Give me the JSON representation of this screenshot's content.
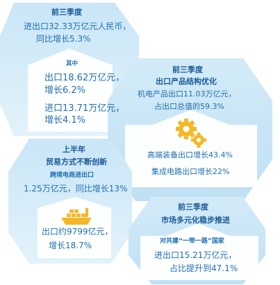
{
  "panel1": {
    "title": "前三季度",
    "line1": "进出口32.33万亿元人民币，",
    "line2": "同比增长5.3%",
    "sub_title": "其中",
    "export_label": "出口18.62万亿元，",
    "export_growth": "增长6.2%",
    "import_label": "进口13.71万亿元，",
    "import_growth": "增长4.1%"
  },
  "panel2": {
    "title": "前三季度",
    "subtitle": "出口产品结构优化",
    "line1": "机电产品出口11.03万亿元，",
    "line2": "占出口总值的59.3%",
    "line3": "高端装备出口增长43.4%",
    "line4": "集成电路出口增长22%",
    "icon": "gears-icon"
  },
  "panel3": {
    "title": "上半年",
    "subtitle": "贸易方式不断创新",
    "line1": "跨境电商进出口",
    "line2": "1.25万亿元，同比增长13%",
    "line3": "出口约9799亿元，",
    "line4": "增长18.7%",
    "icon": "cargo-ship-icon"
  },
  "panel4": {
    "title": "前三季度",
    "subtitle": "市场多元化稳步推进",
    "line1": "对共建“一带一路”国家",
    "line2": "进出口15.21万亿元，",
    "line3": "占比提升到47.1%"
  },
  "colors": {
    "hex_light": "#dbeef9",
    "hex_mid": "#bfe1f5",
    "arrow_fill": "#ffffff",
    "title_blue": "#1a5a97",
    "text_blue": "#1f6fb2"
  }
}
